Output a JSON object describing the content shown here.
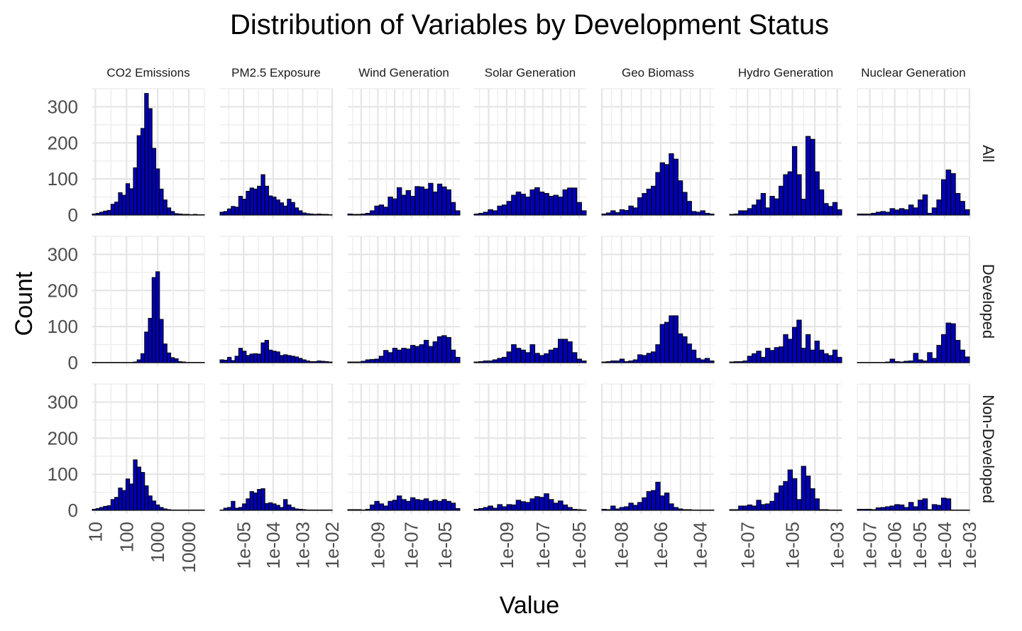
{
  "chart_data": {
    "type": "bar",
    "title": "Distribution of Variables by Development Status",
    "xlabel": "Value",
    "ylabel": "Count",
    "x_scale": "log10",
    "ylim": [
      0,
      350
    ],
    "y_ticks": [
      0,
      100,
      200,
      300
    ],
    "grid": true,
    "bar_fill": "#0000b3",
    "bar_stroke": "#000000",
    "rows": [
      "All",
      "Developed",
      "Non-Developed"
    ],
    "panels": [
      {
        "name": "CO2 Emissions",
        "xlim_log10": [
          0.9,
          4.5
        ],
        "x_ticks": [
          {
            "log": 1,
            "label": "10"
          },
          {
            "log": 2,
            "label": "100"
          },
          {
            "log": 3,
            "label": "1000"
          },
          {
            "log": 4,
            "label": "10000"
          }
        ],
        "counts": {
          "All": [
            3,
            5,
            8,
            11,
            13,
            30,
            36,
            62,
            55,
            87,
            73,
            131,
            220,
            240,
            337,
            295,
            185,
            128,
            72,
            42,
            20,
            10,
            4,
            3,
            2,
            2,
            1,
            2,
            1,
            1
          ],
          "Developed": [
            1,
            1,
            1,
            1,
            1,
            1,
            1,
            1,
            1,
            1,
            1,
            2,
            8,
            25,
            85,
            123,
            236,
            252,
            120,
            52,
            27,
            14,
            11,
            3,
            2,
            1,
            1,
            1,
            1,
            1
          ],
          "Non-Developed": [
            3,
            5,
            8,
            11,
            13,
            30,
            36,
            62,
            55,
            87,
            73,
            140,
            120,
            105,
            68,
            40,
            26,
            15,
            8,
            4,
            2,
            1,
            1,
            1,
            1,
            1,
            1,
            1,
            1,
            1
          ]
        }
      },
      {
        "name": "PM2.5 Exposure",
        "xlim_log10": [
          -5.8,
          -2.0
        ],
        "x_ticks": [
          {
            "log": -5,
            "label": "1e-05"
          },
          {
            "log": -4,
            "label": "1e-04"
          },
          {
            "log": -3,
            "label": "1e-03"
          },
          {
            "log": -2,
            "label": "1e-02"
          }
        ],
        "counts": {
          "All": [
            8,
            10,
            17,
            24,
            22,
            52,
            44,
            66,
            75,
            72,
            80,
            112,
            80,
            53,
            50,
            42,
            34,
            25,
            44,
            35,
            20,
            12,
            6,
            4,
            3,
            2,
            3,
            2,
            2,
            1
          ],
          "Developed": [
            8,
            7,
            15,
            6,
            18,
            40,
            32,
            20,
            24,
            25,
            24,
            55,
            62,
            35,
            32,
            30,
            20,
            22,
            20,
            18,
            16,
            12,
            8,
            5,
            3,
            3,
            5,
            4,
            3,
            2
          ],
          "Non-Developed": [
            1,
            6,
            8,
            25,
            6,
            8,
            18,
            32,
            52,
            48,
            58,
            60,
            19,
            21,
            18,
            14,
            8,
            30,
            15,
            8,
            4,
            3,
            2,
            1,
            1,
            1,
            1,
            1,
            1,
            1
          ]
        }
      },
      {
        "name": "Wind Generation",
        "xlim_log10": [
          -10.8,
          -4.1
        ],
        "x_ticks": [
          {
            "log": -9,
            "label": "1e-09"
          },
          {
            "log": -7,
            "label": "1e-07"
          },
          {
            "log": -5,
            "label": "1e-05"
          }
        ],
        "counts": {
          "All": [
            3,
            2,
            2,
            3,
            5,
            12,
            25,
            28,
            22,
            50,
            45,
            76,
            55,
            68,
            52,
            79,
            78,
            72,
            88,
            64,
            86,
            78,
            70,
            35,
            12
          ],
          "Developed": [
            2,
            2,
            2,
            4,
            8,
            9,
            10,
            18,
            34,
            28,
            40,
            35,
            40,
            38,
            48,
            45,
            50,
            62,
            45,
            58,
            72,
            75,
            70,
            35,
            15
          ],
          "Non-Developed": [
            2,
            2,
            2,
            1,
            3,
            15,
            25,
            18,
            12,
            25,
            28,
            40,
            30,
            25,
            35,
            30,
            28,
            32,
            25,
            28,
            25,
            30,
            25,
            20,
            5
          ]
        }
      },
      {
        "name": "Solar Generation",
        "xlim_log10": [
          -10.8,
          -4.6
        ],
        "x_ticks": [
          {
            "log": -9,
            "label": "1e-09"
          },
          {
            "log": -7,
            "label": "1e-07"
          },
          {
            "log": -5,
            "label": "1e-05"
          }
        ],
        "counts": {
          "All": [
            3,
            5,
            8,
            15,
            12,
            25,
            28,
            38,
            55,
            64,
            58,
            50,
            70,
            76,
            64,
            60,
            52,
            55,
            50,
            70,
            75,
            75,
            35,
            12
          ],
          "Developed": [
            2,
            3,
            5,
            5,
            8,
            12,
            15,
            30,
            50,
            40,
            35,
            28,
            50,
            26,
            20,
            25,
            35,
            40,
            65,
            65,
            58,
            28,
            10,
            5
          ],
          "Non-Developed": [
            3,
            5,
            8,
            12,
            6,
            16,
            10,
            16,
            15,
            28,
            24,
            22,
            32,
            38,
            36,
            46,
            30,
            20,
            26,
            15,
            8,
            3,
            2,
            1
          ]
        }
      },
      {
        "name": "Geo Biomass",
        "xlim_log10": [
          -9.0,
          -3.3
        ],
        "x_ticks": [
          {
            "log": -8,
            "label": "1e-08"
          },
          {
            "log": -6,
            "label": "1e-06"
          },
          {
            "log": -4,
            "label": "1e-04"
          }
        ],
        "counts": {
          "All": [
            3,
            6,
            12,
            7,
            15,
            13,
            25,
            20,
            48,
            60,
            72,
            80,
            118,
            145,
            140,
            170,
            155,
            95,
            63,
            38,
            10,
            8,
            12,
            5,
            3
          ],
          "Developed": [
            2,
            3,
            5,
            5,
            10,
            3,
            5,
            8,
            22,
            20,
            26,
            30,
            50,
            106,
            112,
            130,
            130,
            80,
            72,
            52,
            35,
            12,
            8,
            12,
            5
          ],
          "Non-Developed": [
            3,
            2,
            12,
            4,
            8,
            10,
            20,
            14,
            22,
            35,
            52,
            55,
            78,
            40,
            48,
            18,
            8,
            4,
            2,
            2,
            1,
            1,
            1,
            1,
            1
          ]
        }
      },
      {
        "name": "Hydro Generation",
        "xlim_log10": [
          -7.8,
          -2.8
        ],
        "x_ticks": [
          {
            "log": -7,
            "label": "1e-07"
          },
          {
            "log": -5,
            "label": "1e-05"
          },
          {
            "log": -3,
            "label": "1e-03"
          }
        ],
        "counts": {
          "All": [
            2,
            3,
            12,
            12,
            18,
            28,
            42,
            60,
            20,
            52,
            45,
            80,
            112,
            120,
            190,
            112,
            44,
            218,
            210,
            120,
            70,
            32,
            24,
            35,
            15
          ],
          "Developed": [
            2,
            3,
            3,
            5,
            18,
            25,
            32,
            15,
            40,
            34,
            42,
            44,
            78,
            65,
            98,
            118,
            40,
            78,
            35,
            60,
            35,
            25,
            20,
            35,
            15
          ],
          "Non-Developed": [
            2,
            2,
            12,
            12,
            15,
            12,
            28,
            16,
            18,
            25,
            48,
            68,
            80,
            112,
            88,
            30,
            122,
            95,
            60,
            32,
            2,
            2,
            1,
            1,
            1
          ]
        }
      },
      {
        "name": "Nuclear Generation",
        "xlim_log10": [
          -7.5,
          -3.0
        ],
        "x_ticks": [
          {
            "log": -7,
            "label": "1e-07"
          },
          {
            "log": -6,
            "label": "1e-06"
          },
          {
            "log": -5,
            "label": "1e-05"
          },
          {
            "log": -4,
            "label": "1e-04"
          },
          {
            "log": -3,
            "label": "1e-03"
          }
        ],
        "counts": {
          "All": [
            3,
            3,
            3,
            5,
            8,
            10,
            8,
            18,
            14,
            18,
            15,
            28,
            20,
            42,
            56,
            5,
            20,
            42,
            98,
            125,
            115,
            60,
            38,
            15
          ],
          "Developed": [
            1,
            1,
            1,
            1,
            1,
            1,
            2,
            10,
            3,
            2,
            4,
            5,
            26,
            8,
            5,
            28,
            12,
            48,
            78,
            110,
            108,
            62,
            35,
            16
          ],
          "Non-Developed": [
            3,
            3,
            3,
            2,
            7,
            8,
            10,
            12,
            16,
            15,
            8,
            22,
            10,
            28,
            32,
            2,
            16,
            14,
            34,
            32,
            1,
            1,
            1,
            1
          ]
        }
      }
    ]
  }
}
